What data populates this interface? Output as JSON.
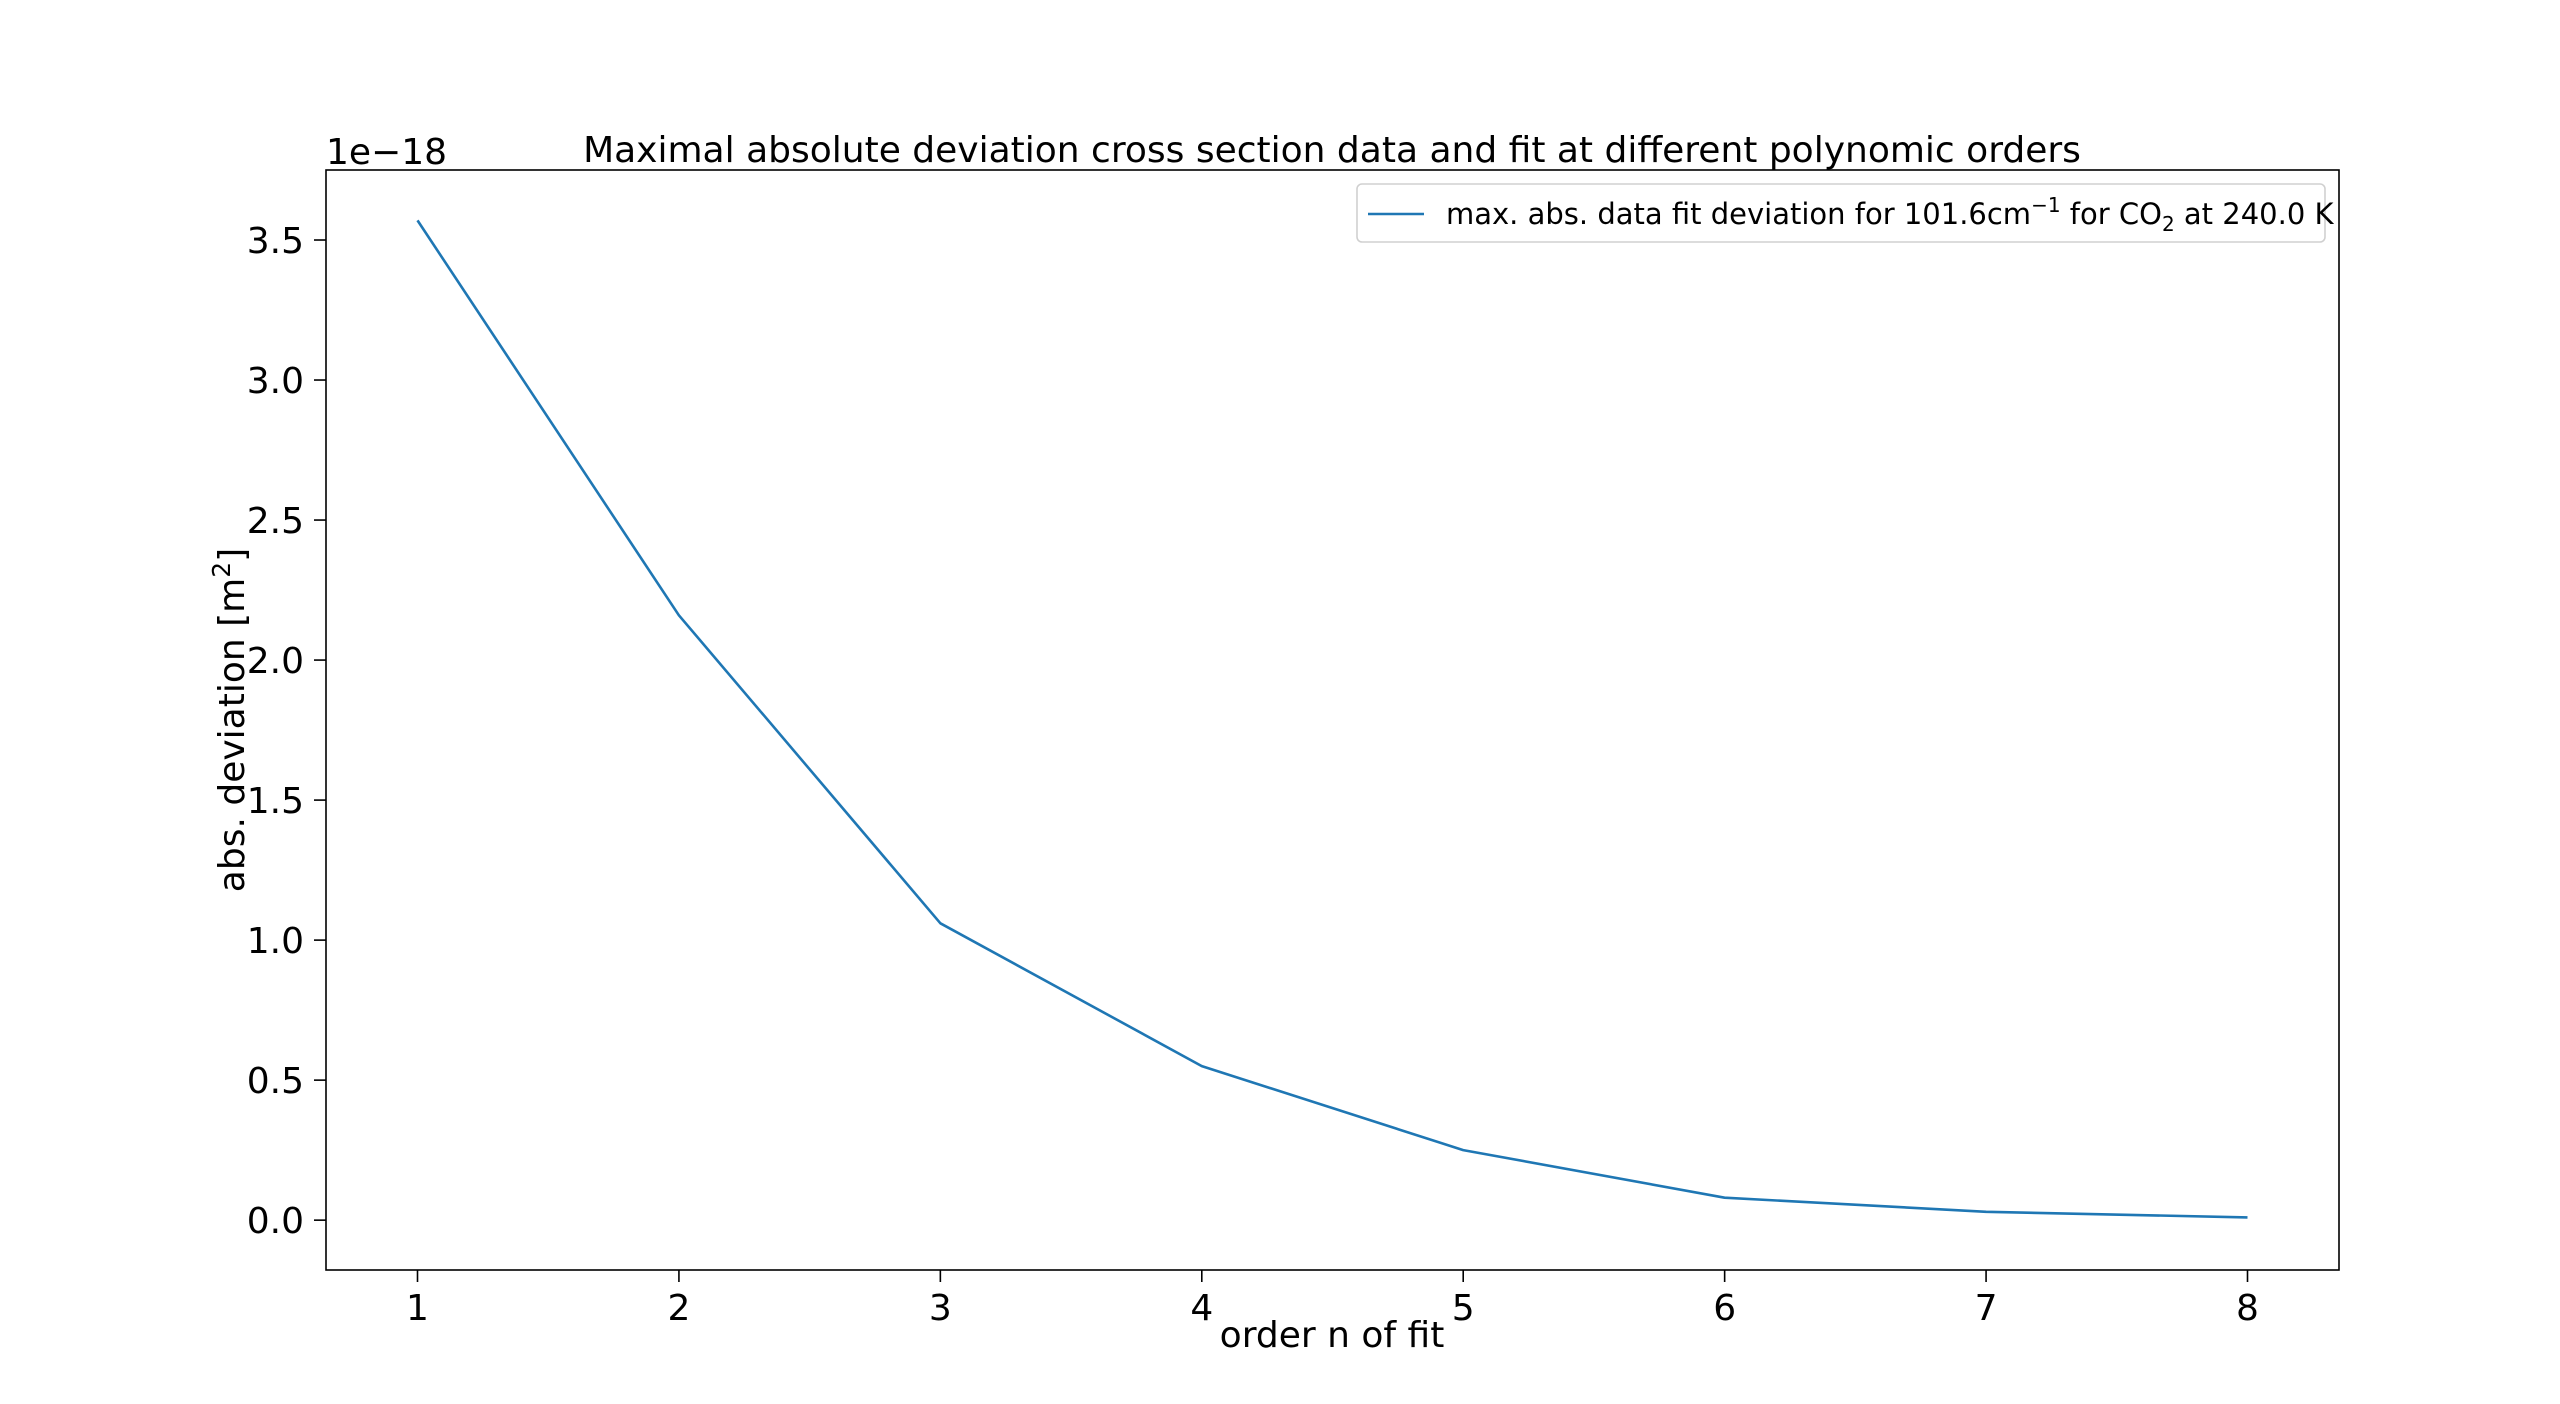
{
  "chart_data": {
    "type": "line",
    "title": "Maximal absolute deviation cross section data and fit at different polynomic orders",
    "xlabel": "order n of fit",
    "ylabel": "abs. deviation [m²]",
    "ylabel_base": "abs. deviation [m",
    "ylabel_sup": "2",
    "ylabel_close": "]",
    "offset_text": "1e−18",
    "x": [
      1,
      2,
      3,
      4,
      5,
      6,
      7,
      8
    ],
    "xticks": [
      "1",
      "2",
      "3",
      "4",
      "5",
      "6",
      "7",
      "8"
    ],
    "yticks": [
      "0.0",
      "0.5",
      "1.0",
      "1.5",
      "2.0",
      "2.5",
      "3.0",
      "3.5"
    ],
    "ytick_values": [
      0.0,
      0.5,
      1.0,
      1.5,
      2.0,
      2.5,
      3.0,
      3.5
    ],
    "xlim": [
      0.65,
      8.35
    ],
    "ylim": [
      -0.178,
      3.75
    ],
    "grid": false,
    "legend_position": "top-right",
    "series": [
      {
        "name": "max. abs. data fit deviation for 101.6cm⁻¹ for CO₂ at 240.0 K",
        "legend_parts": {
          "pre": "max. abs. data fit deviation for 101.6cm",
          "sup": "−1",
          "mid": " for CO",
          "sub": "2",
          "post": " at 240.0 K"
        },
        "color": "#1f77b4",
        "values": [
          3.57,
          2.16,
          1.06,
          0.55,
          0.25,
          0.08,
          0.03,
          0.01
        ]
      }
    ]
  }
}
